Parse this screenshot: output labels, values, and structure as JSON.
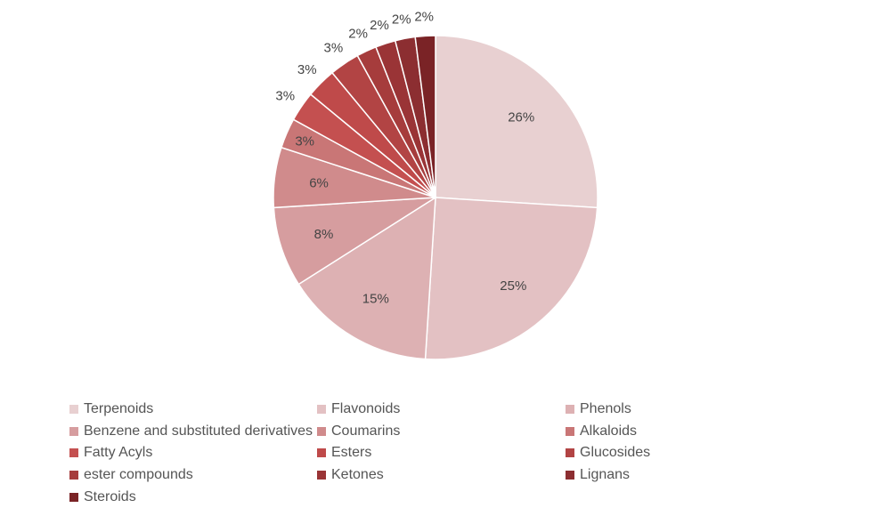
{
  "chart_data": {
    "type": "pie",
    "title": "",
    "categories": [
      "Terpenoids",
      "Flavonoids",
      "Phenols",
      "Benzene and substituted derivatives",
      "Coumarins",
      "Alkaloids",
      "Fatty Acyls",
      "Esters",
      "Glucosides",
      "ester compounds",
      "Ketones",
      "Lignans",
      "Steroids"
    ],
    "values": [
      26,
      25,
      15,
      8,
      6,
      3,
      3,
      3,
      3,
      2,
      2,
      2,
      2
    ],
    "labels": [
      "26%",
      "25%",
      "15%",
      "8%",
      "6%",
      "3%",
      "3%",
      "3%",
      "3%",
      "2%",
      "2%",
      "2%",
      "2%"
    ],
    "colors": [
      "#e8d0d1",
      "#e3c1c3",
      "#ddb1b3",
      "#d69d9f",
      "#d08b8c",
      "#c97676",
      "#c45050",
      "#bf4a4a",
      "#b24444",
      "#a63c3c",
      "#9a3436",
      "#8c2e31",
      "#7a2326"
    ],
    "legend_position": "bottom"
  }
}
